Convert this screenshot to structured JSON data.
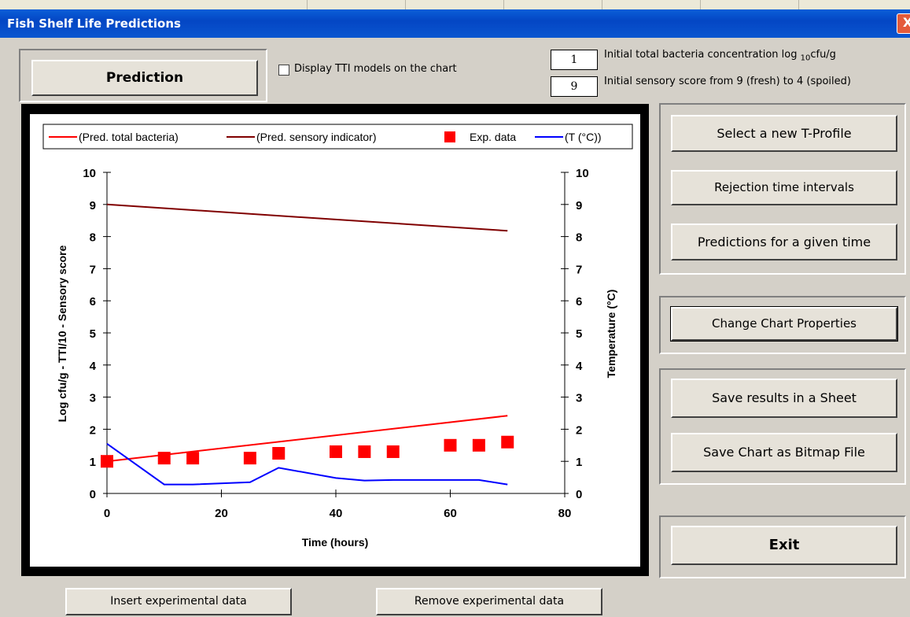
{
  "window": {
    "title": "Fish Shelf Life Predictions",
    "close_glyph": "X"
  },
  "top": {
    "prediction_label": "Prediction",
    "tti_checkbox_label": "Display TTI models on the chart",
    "tti_checked": false,
    "initial_bacteria_value": "1",
    "initial_bacteria_label_main": "Initial total bacteria concentration log",
    "initial_bacteria_label_sub": "10",
    "initial_bacteria_label_unit": "cfu/g",
    "initial_sensory_value": "9",
    "initial_sensory_label": "Initial sensory score from 9 (fresh) to 4 (spoiled)"
  },
  "side": {
    "select_profile": "Select a new T-Profile",
    "rejection": "Rejection time intervals",
    "given_time": "Predictions for a given time",
    "chart_props": "Change Chart Properties",
    "save_sheet": "Save results in a Sheet",
    "save_bitmap": "Save Chart as Bitmap File",
    "exit": "Exit"
  },
  "bottom": {
    "insert": "Insert experimental data",
    "remove": "Remove experimental data"
  },
  "chart_data": {
    "type": "line",
    "xlabel": "Time (hours)",
    "ylabel": "Log cfu/g - TTI/10 - Sensory score",
    "y2label": "Temperature (°C)",
    "xlim": [
      0,
      80
    ],
    "ylim": [
      0,
      10
    ],
    "y2lim": [
      0,
      10
    ],
    "xticks": [
      0,
      20,
      40,
      60,
      80
    ],
    "yticks": [
      0,
      1,
      2,
      3,
      4,
      5,
      6,
      7,
      8,
      9,
      10
    ],
    "y2ticks": [
      0,
      1,
      2,
      3,
      4,
      5,
      6,
      7,
      8,
      9,
      10
    ],
    "grid": false,
    "legend_position": "top",
    "series": [
      {
        "name": "(Pred. total bacteria)",
        "kind": "line",
        "color": "#ff0000",
        "x": [
          0,
          70
        ],
        "y": [
          1.0,
          2.42
        ]
      },
      {
        "name": "(Pred. sensory indicator)",
        "kind": "line",
        "color": "#800000",
        "x": [
          0,
          70
        ],
        "y": [
          9.0,
          8.18
        ]
      },
      {
        "name": "Exp. data",
        "kind": "scatter",
        "color": "#ff0000",
        "x": [
          0,
          10,
          15,
          25,
          30,
          40,
          45,
          50,
          60,
          65,
          70
        ],
        "y": [
          1.0,
          1.1,
          1.1,
          1.1,
          1.25,
          1.3,
          1.3,
          1.3,
          1.5,
          1.5,
          1.6
        ]
      },
      {
        "name": "(T (°C))",
        "kind": "line",
        "color": "#0000ff",
        "axis": "right",
        "x": [
          0,
          10,
          15,
          25,
          30,
          40,
          45,
          50,
          60,
          65,
          70
        ],
        "y": [
          1.55,
          0.28,
          0.28,
          0.35,
          0.8,
          0.48,
          0.4,
          0.42,
          0.42,
          0.42,
          0.28
        ]
      }
    ]
  }
}
